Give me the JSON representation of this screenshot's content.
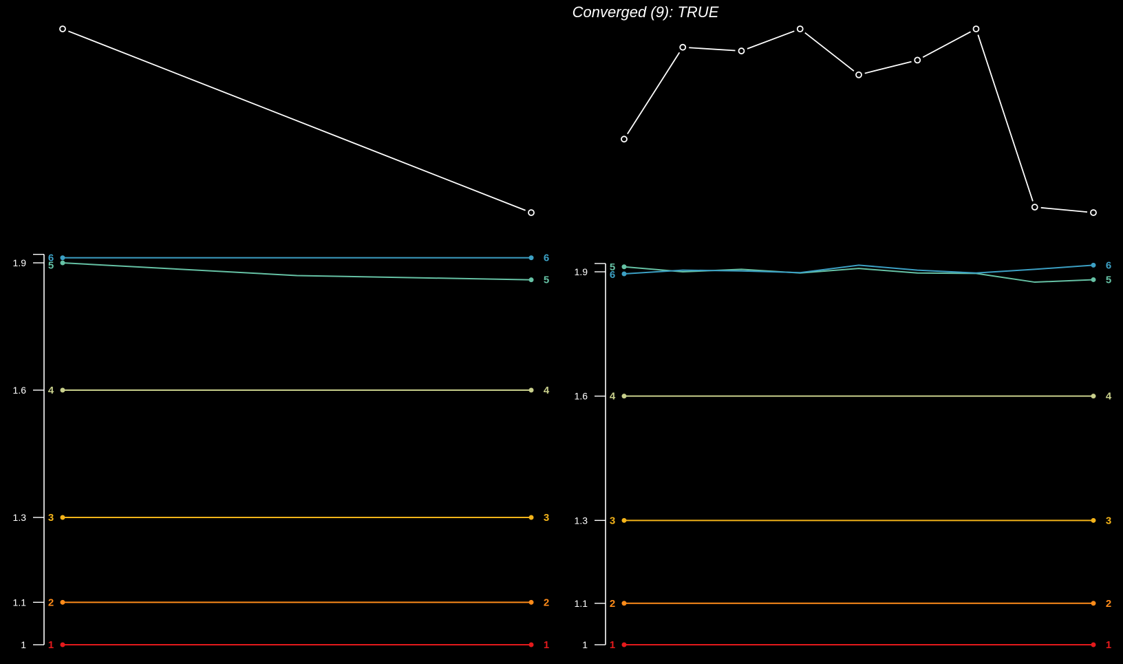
{
  "title": "Converged (9): TRUE",
  "colors": {
    "background": "#000000",
    "foreground": "#ffffff",
    "1": "#e41a1c",
    "2": "#ff8c1a",
    "3": "#f4b41a",
    "4": "#c9d08c",
    "5": "#66c2a5",
    "6": "#3ca0c4"
  },
  "chart_data": [
    {
      "type": "line",
      "panel": "top-left",
      "markers": "open-circle",
      "x": [
        1,
        2
      ],
      "values": [
        2.0,
        1.0
      ]
    },
    {
      "type": "line",
      "panel": "top-right",
      "markers": "open-circle",
      "x": [
        1,
        2,
        3,
        4,
        5,
        6,
        7,
        8,
        9
      ],
      "values": [
        0.4,
        0.9,
        0.88,
        1.0,
        0.75,
        0.83,
        1.0,
        0.03,
        0.0
      ]
    },
    {
      "type": "line",
      "panel": "bottom-left",
      "x": [
        1,
        2
      ],
      "yticks": [
        "1",
        "1.1",
        "1.3",
        "1.6",
        "1.9"
      ],
      "ytick_values": [
        1,
        1.1,
        1.3,
        1.6,
        1.9
      ],
      "ylim": [
        1,
        1.92
      ],
      "series": [
        {
          "name": "1",
          "color": "#e41a1c",
          "x": [
            1,
            2
          ],
          "values": [
            1.0,
            1.0
          ]
        },
        {
          "name": "2",
          "color": "#ff8c1a",
          "x": [
            1,
            2
          ],
          "values": [
            1.1,
            1.1
          ]
        },
        {
          "name": "3",
          "color": "#f4b41a",
          "x": [
            1,
            2
          ],
          "values": [
            1.3,
            1.3
          ]
        },
        {
          "name": "4",
          "color": "#c9d08c",
          "x": [
            1,
            2
          ],
          "values": [
            1.6,
            1.6
          ]
        },
        {
          "name": "5",
          "color": "#66c2a5",
          "x": [
            1,
            1.5,
            2
          ],
          "values": [
            1.9,
            1.87,
            1.86
          ]
        },
        {
          "name": "6",
          "color": "#3ca0c4",
          "x": [
            1,
            2
          ],
          "values": [
            1.912,
            1.912
          ]
        }
      ]
    },
    {
      "type": "line",
      "panel": "bottom-right",
      "x": [
        1,
        2,
        3,
        4,
        5,
        6,
        7,
        8,
        9
      ],
      "yticks": [
        "1",
        "1.1",
        "1.3",
        "1.6",
        "1.9"
      ],
      "ytick_values": [
        1,
        1.1,
        1.3,
        1.6,
        1.9
      ],
      "ylim": [
        1,
        1.92
      ],
      "series": [
        {
          "name": "1",
          "color": "#e41a1c",
          "x": [
            1,
            9
          ],
          "values": [
            1.0,
            1.0
          ]
        },
        {
          "name": "2",
          "color": "#ff8c1a",
          "x": [
            1,
            9
          ],
          "values": [
            1.1,
            1.1
          ]
        },
        {
          "name": "3",
          "color": "#f4b41a",
          "x": [
            1,
            9
          ],
          "values": [
            1.3,
            1.3
          ]
        },
        {
          "name": "4",
          "color": "#c9d08c",
          "x": [
            1,
            9
          ],
          "values": [
            1.6,
            1.6
          ]
        },
        {
          "name": "5",
          "color": "#66c2a5",
          "x": [
            1,
            2,
            3,
            4,
            5,
            6,
            7,
            8,
            9
          ],
          "values": [
            1.912,
            1.9,
            1.906,
            1.897,
            1.908,
            1.897,
            1.896,
            1.875,
            1.881
          ]
        },
        {
          "name": "6",
          "color": "#3ca0c4",
          "x": [
            1,
            2,
            3,
            4,
            5,
            6,
            7,
            8,
            9
          ],
          "values": [
            1.895,
            1.904,
            1.902,
            1.898,
            1.916,
            1.904,
            1.897,
            1.906,
            1.916
          ]
        }
      ]
    }
  ]
}
